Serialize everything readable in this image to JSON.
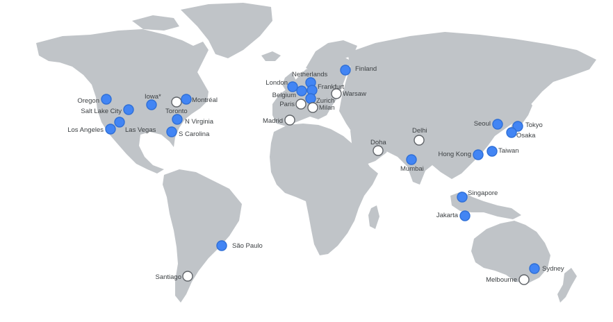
{
  "legend_colors": {
    "active": "#4285f4",
    "planned": "#ffffff",
    "land": "#c0c4c8"
  },
  "regions": [
    {
      "id": "oregon",
      "name": "Oregon",
      "status": "active"
    },
    {
      "id": "salt-lake-city",
      "name": "Salt Lake City",
      "status": "active"
    },
    {
      "id": "los-angeles",
      "name": "Los Angeles",
      "status": "active"
    },
    {
      "id": "las-vegas",
      "name": "Las Vegas",
      "status": "active"
    },
    {
      "id": "iowa",
      "name": "Iowa*",
      "status": "active"
    },
    {
      "id": "toronto",
      "name": "Toronto",
      "status": "planned"
    },
    {
      "id": "montreal",
      "name": "Montréal",
      "status": "active"
    },
    {
      "id": "n-virginia",
      "name": "N Virginia",
      "status": "active"
    },
    {
      "id": "s-carolina",
      "name": "S Carolina",
      "status": "active"
    },
    {
      "id": "sao-paulo",
      "name": "São Paulo",
      "status": "active"
    },
    {
      "id": "santiago",
      "name": "Santiago",
      "status": "planned"
    },
    {
      "id": "london",
      "name": "London",
      "status": "active"
    },
    {
      "id": "netherlands",
      "name": "Netherlands",
      "status": "active"
    },
    {
      "id": "belgium",
      "name": "Belgium",
      "status": "active"
    },
    {
      "id": "frankfurt",
      "name": "Frankfurt",
      "status": "active"
    },
    {
      "id": "zurich",
      "name": "Zurich",
      "status": "active"
    },
    {
      "id": "paris",
      "name": "Paris",
      "status": "planned"
    },
    {
      "id": "milan",
      "name": "Milan",
      "status": "planned"
    },
    {
      "id": "warsaw",
      "name": "Warsaw",
      "status": "planned"
    },
    {
      "id": "madrid",
      "name": "Madrid",
      "status": "planned"
    },
    {
      "id": "finland",
      "name": "Finland",
      "status": "active"
    },
    {
      "id": "doha",
      "name": "Doha",
      "status": "planned"
    },
    {
      "id": "delhi",
      "name": "Delhi",
      "status": "planned"
    },
    {
      "id": "mumbai",
      "name": "Mumbai",
      "status": "active"
    },
    {
      "id": "hong-kong",
      "name": "Hong Kong",
      "status": "active"
    },
    {
      "id": "taiwan",
      "name": "Taiwan",
      "status": "active"
    },
    {
      "id": "seoul",
      "name": "Seoul",
      "status": "active"
    },
    {
      "id": "tokyo",
      "name": "Tokyo",
      "status": "active"
    },
    {
      "id": "osaka",
      "name": "Osaka",
      "status": "active"
    },
    {
      "id": "singapore",
      "name": "Singapore",
      "status": "active"
    },
    {
      "id": "jakarta",
      "name": "Jakarta",
      "status": "active"
    },
    {
      "id": "sydney",
      "name": "Sydney",
      "status": "active"
    },
    {
      "id": "melbourne",
      "name": "Melbourne",
      "status": "planned"
    }
  ]
}
